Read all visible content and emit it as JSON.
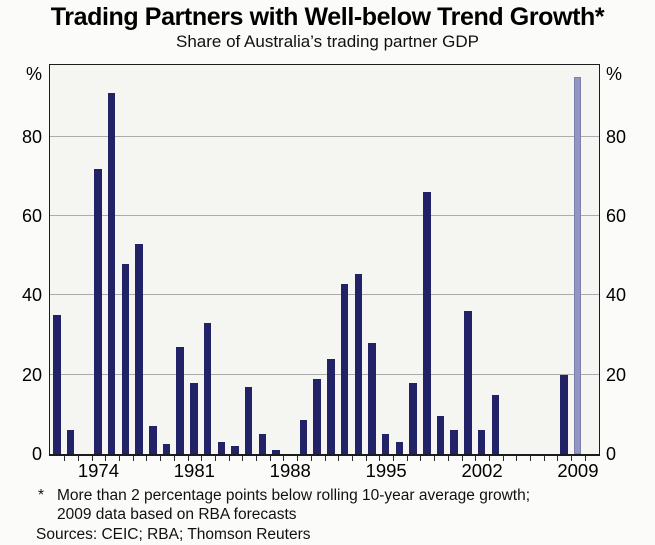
{
  "title": "Trading Partners with Well-below Trend Growth*",
  "subtitle": "Share of Australia’s trading partner GDP",
  "y_axis": {
    "unit_label": "%",
    "tick_labels": [
      "80",
      "60",
      "40",
      "20",
      "0"
    ],
    "tick_values": [
      80,
      60,
      40,
      20,
      0
    ]
  },
  "x_axis": {
    "labels": [
      "1974",
      "1981",
      "1988",
      "1995",
      "2002",
      "2009"
    ]
  },
  "footnote": {
    "marker": "*",
    "line1": "More than 2 percentage points below rolling 10-year average growth;",
    "line2": "2009 data based on RBA forecasts",
    "sources": "Sources: CEIC; RBA; Thomson Reuters"
  },
  "colors": {
    "bar": "#222266",
    "forecast_bar_fill": "#9196c2",
    "forecast_bar_border": "#7a7fae",
    "plot_background": "#f5f5f2",
    "gridline": "#ababab",
    "frame": "#1c1c1c",
    "figure_background": "#fbfbf9"
  },
  "chart_data": {
    "type": "bar",
    "title": "Trading Partners with Well-below Trend Growth*",
    "subtitle": "Share of Australia’s trading partner GDP",
    "xlabel": "",
    "ylabel": "%",
    "ylim": [
      0,
      98
    ],
    "grid": true,
    "gridline_values": [
      20,
      40,
      60,
      80
    ],
    "x_tick_label_years": [
      1974,
      1981,
      1988,
      1995,
      2002,
      2009
    ],
    "x": [
      1971,
      1972,
      1973,
      1974,
      1975,
      1976,
      1977,
      1978,
      1979,
      1980,
      1981,
      1982,
      1983,
      1984,
      1985,
      1986,
      1987,
      1988,
      1989,
      1990,
      1991,
      1992,
      1993,
      1994,
      1995,
      1996,
      1997,
      1998,
      1999,
      2000,
      2001,
      2002,
      2003,
      2004,
      2005,
      2006,
      2007,
      2008,
      2009
    ],
    "values": [
      35,
      6,
      0,
      72,
      91,
      48,
      53,
      7,
      2.5,
      27,
      18,
      33,
      3,
      2,
      17,
      5,
      1,
      0,
      8.5,
      19,
      24,
      43,
      45.5,
      28,
      5,
      3,
      18,
      66,
      9.5,
      6,
      36,
      6,
      15,
      0,
      0,
      0,
      0,
      20,
      95
    ],
    "forecast_year": 2009,
    "forecast_note": "2009 bar shown in lighter colour; based on RBA forecasts",
    "extra_empty_slot_after_last_year": true
  }
}
